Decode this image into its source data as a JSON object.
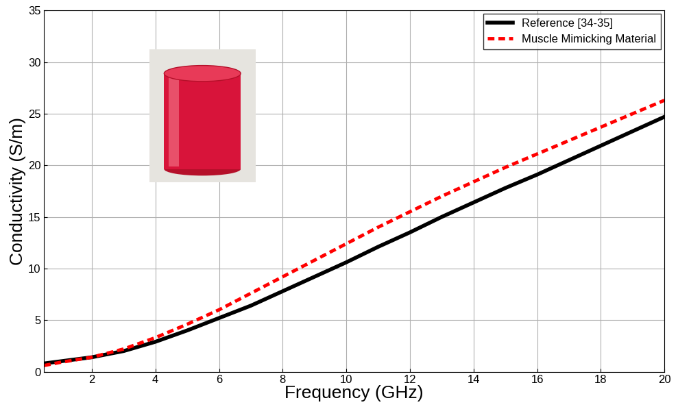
{
  "chart_data": {
    "type": "line",
    "x_label": "Frequency (GHz)",
    "y_label": "Conductivity (S/m)",
    "x": [
      0.5,
      1,
      2,
      3,
      4,
      5,
      6,
      7,
      8,
      9,
      10,
      11,
      12,
      13,
      14,
      15,
      16,
      17,
      18,
      19,
      20
    ],
    "series": [
      {
        "name": "Reference [34-35]",
        "color": "#000000",
        "line_style": "solid",
        "values": [
          0.8,
          1.0,
          1.4,
          2.0,
          2.9,
          4.0,
          5.2,
          6.4,
          7.8,
          9.2,
          10.6,
          12.1,
          13.5,
          15.0,
          16.4,
          17.8,
          19.1,
          20.5,
          21.9,
          23.3,
          24.7
        ]
      },
      {
        "name": "Muscle Mimicking Material",
        "color": "#ff0000",
        "line_style": "dashed",
        "values": [
          0.6,
          0.9,
          1.4,
          2.2,
          3.3,
          4.6,
          6.0,
          7.6,
          9.2,
          10.8,
          12.4,
          14.0,
          15.5,
          17.0,
          18.4,
          19.8,
          21.1,
          22.4,
          23.7,
          25.0,
          26.3
        ]
      }
    ],
    "xlim": [
      0.5,
      20
    ],
    "xticks": [
      2,
      4,
      6,
      8,
      10,
      12,
      14,
      16,
      18,
      20
    ],
    "ylim": [
      0,
      35
    ],
    "yticks": [
      0,
      5,
      10,
      15,
      20,
      25,
      30,
      35
    ],
    "grid": true,
    "legend": "upper right"
  }
}
